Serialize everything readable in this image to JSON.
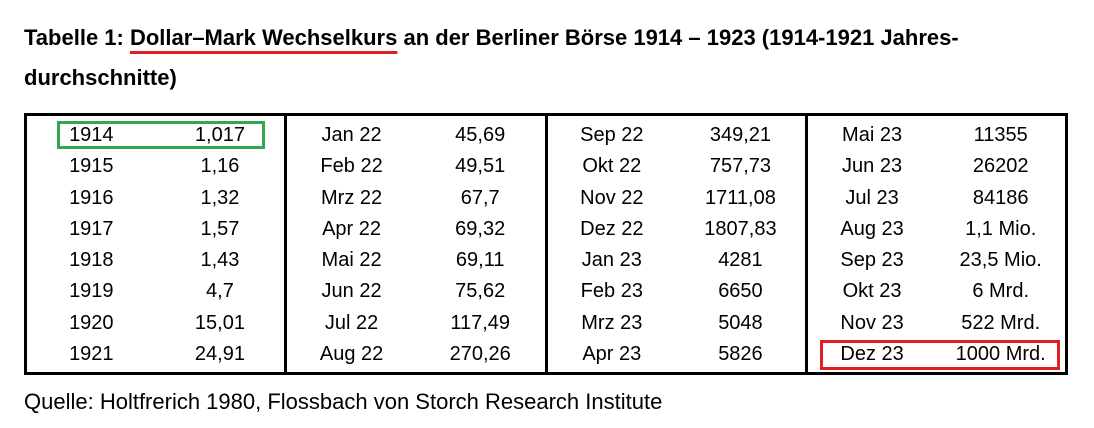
{
  "title": {
    "prefix": "Tabelle 1: ",
    "highlight": "Dollar–Mark Wechselkurs",
    "suffix": " an der Berliner Börse 1914 – 1923 (1914-1921 Jahres-durchschnitte)",
    "highlight_color": "#e02020"
  },
  "table": {
    "blocks": [
      {
        "rows": [
          {
            "period": "1914",
            "value": "1,017"
          },
          {
            "period": "1915",
            "value": "1,16"
          },
          {
            "period": "1916",
            "value": "1,32"
          },
          {
            "period": "1917",
            "value": "1,57"
          },
          {
            "period": "1918",
            "value": "1,43"
          },
          {
            "period": "1919",
            "value": "4,7"
          },
          {
            "period": "1920",
            "value": "15,01"
          },
          {
            "period": "1921",
            "value": "24,91"
          }
        ]
      },
      {
        "rows": [
          {
            "period": "Jan 22",
            "value": "45,69"
          },
          {
            "period": "Feb 22",
            "value": "49,51"
          },
          {
            "period": "Mrz 22",
            "value": "67,7"
          },
          {
            "period": "Apr 22",
            "value": "69,32"
          },
          {
            "period": "Mai 22",
            "value": "69,11"
          },
          {
            "period": "Jun 22",
            "value": "75,62"
          },
          {
            "period": "Jul 22",
            "value": "117,49"
          },
          {
            "period": "Aug 22",
            "value": "270,26"
          }
        ]
      },
      {
        "rows": [
          {
            "period": "Sep 22",
            "value": "349,21"
          },
          {
            "period": "Okt 22",
            "value": "757,73"
          },
          {
            "period": "Nov 22",
            "value": "1711,08"
          },
          {
            "period": "Dez 22",
            "value": "1807,83"
          },
          {
            "period": "Jan 23",
            "value": "4281"
          },
          {
            "period": "Feb 23",
            "value": "6650"
          },
          {
            "period": "Mrz 23",
            "value": "5048"
          },
          {
            "period": "Apr 23",
            "value": "5826"
          }
        ]
      },
      {
        "rows": [
          {
            "period": "Mai 23",
            "value": "11355"
          },
          {
            "period": "Jun 23",
            "value": "26202"
          },
          {
            "period": "Jul 23",
            "value": "84186"
          },
          {
            "period": "Aug 23",
            "value": "1,1 Mio."
          },
          {
            "period": "Sep 23",
            "value": "23,5 Mio."
          },
          {
            "period": "Okt 23",
            "value": "6 Mrd."
          },
          {
            "period": "Nov 23",
            "value": "522 Mrd."
          },
          {
            "period": "Dez 23",
            "value": "1000 Mrd."
          }
        ]
      }
    ],
    "highlight_first_color": "#2fa84f",
    "highlight_last_color": "#e02020"
  },
  "source": "Quelle: Holtfrerich 1980, Flossbach von Storch Research Institute"
}
